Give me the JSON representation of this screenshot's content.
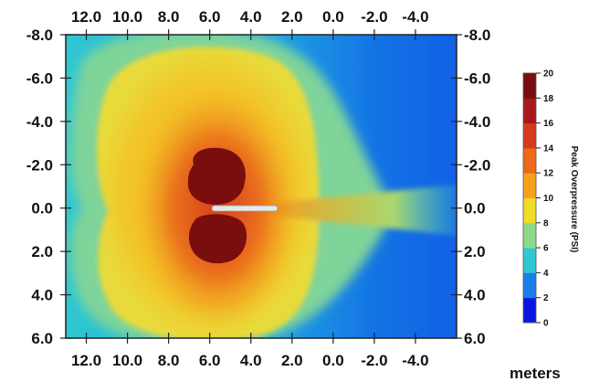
{
  "chart_data": {
    "type": "heatmap",
    "title": "",
    "xlabel": "meters",
    "ylabel": "",
    "x_ticks": [
      "12.0",
      "10.0",
      "8.0",
      "6.0",
      "4.0",
      "2.0",
      "0.0",
      "-2.0",
      "-4.0"
    ],
    "x_tick_values": [
      12,
      10,
      8,
      6,
      4,
      2,
      0,
      -2,
      -4
    ],
    "y_ticks": [
      "-8.0",
      "-6.0",
      "-4.0",
      "-2.0",
      "0.0",
      "2.0",
      "4.0",
      "6.0"
    ],
    "y_tick_values": [
      -8,
      -6,
      -4,
      -2,
      0,
      2,
      4,
      6
    ],
    "xlim": [
      13.0,
      -6.0
    ],
    "ylim": [
      -8.0,
      6.0
    ],
    "axes_on": [
      "top",
      "bottom",
      "left",
      "right"
    ],
    "colorbar": {
      "title": "Peak Overpressure (PSI)",
      "ticks": [
        "0",
        "2",
        "4",
        "6",
        "8",
        "10",
        "12",
        "14",
        "16",
        "18",
        "20"
      ],
      "tick_values": [
        0,
        2,
        4,
        6,
        8,
        10,
        12,
        14,
        16,
        18,
        20
      ],
      "range": [
        0,
        20
      ],
      "colors": [
        "#0a16e0",
        "#1a7de8",
        "#2ec8d2",
        "#8fd889",
        "#f0dc2a",
        "#f4a21d",
        "#ec6a1a",
        "#d63a1c",
        "#a81818",
        "#7a0d0d"
      ]
    },
    "source_location": [
      3.0,
      0.0
    ],
    "source_vertical_extent": [
      -1.4,
      1.4
    ],
    "peak_region_value": 20,
    "far_field_value": 1
  }
}
